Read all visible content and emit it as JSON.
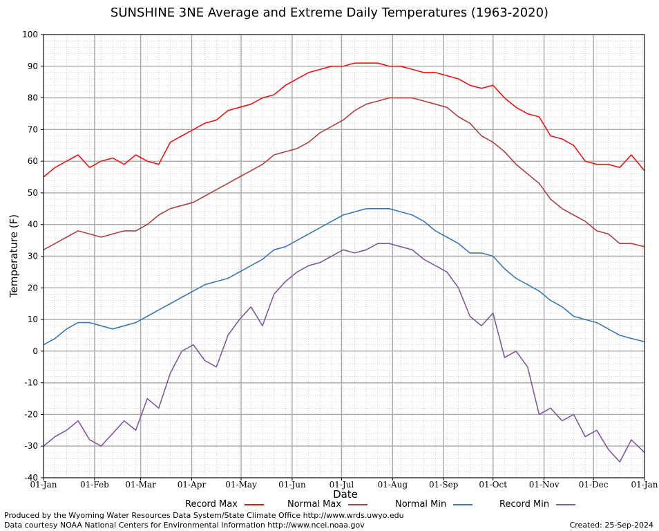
{
  "chart_data": {
    "type": "line",
    "title": "SUNSHINE 3NE Average and Extreme Daily Temperatures (1963-2020)",
    "xlabel": "Date",
    "ylabel": "Temperature (F)",
    "ylim": [
      -40,
      100
    ],
    "yticks": [
      100,
      90,
      80,
      70,
      60,
      50,
      40,
      30,
      20,
      10,
      0,
      -10,
      -20,
      -30,
      -40
    ],
    "x_ticks": [
      {
        "label": "01-Jan",
        "day": 1
      },
      {
        "label": "01-Feb",
        "day": 32
      },
      {
        "label": "01-Mar",
        "day": 60
      },
      {
        "label": "01-Apr",
        "day": 91
      },
      {
        "label": "01-May",
        "day": 121
      },
      {
        "label": "01-Jun",
        "day": 152
      },
      {
        "label": "01-Jul",
        "day": 182
      },
      {
        "label": "01-Aug",
        "day": 213
      },
      {
        "label": "01-Sep",
        "day": 244
      },
      {
        "label": "01-Oct",
        "day": 274
      },
      {
        "label": "01-Nov",
        "day": 305
      },
      {
        "label": "01-Dec",
        "day": 335
      },
      {
        "label": "01-Jan",
        "day": 366
      }
    ],
    "grid": true,
    "legend_position": "bottom",
    "series": [
      {
        "name": "Record Max",
        "color": "#ee1111",
        "x": [
          1,
          8,
          15,
          22,
          29,
          36,
          43,
          50,
          57,
          64,
          71,
          78,
          85,
          92,
          99,
          106,
          113,
          120,
          127,
          134,
          141,
          148,
          155,
          162,
          169,
          176,
          183,
          190,
          197,
          204,
          211,
          218,
          225,
          232,
          239,
          246,
          253,
          260,
          267,
          274,
          281,
          288,
          295,
          302,
          309,
          316,
          323,
          330,
          337,
          344,
          351,
          358,
          366
        ],
        "y": [
          55,
          58,
          60,
          62,
          58,
          60,
          61,
          59,
          62,
          60,
          59,
          66,
          68,
          70,
          72,
          73,
          76,
          77,
          78,
          80,
          81,
          84,
          86,
          88,
          89,
          90,
          90,
          91,
          91,
          91,
          90,
          90,
          89,
          88,
          88,
          87,
          86,
          84,
          83,
          84,
          80,
          77,
          75,
          74,
          68,
          67,
          65,
          60,
          59,
          59,
          58,
          62,
          57
        ]
      },
      {
        "name": "Normal Max",
        "color": "#b04040",
        "x": [
          1,
          8,
          15,
          22,
          29,
          36,
          43,
          50,
          57,
          64,
          71,
          78,
          85,
          92,
          99,
          106,
          113,
          120,
          127,
          134,
          141,
          148,
          155,
          162,
          169,
          176,
          183,
          190,
          197,
          204,
          211,
          218,
          225,
          232,
          239,
          246,
          253,
          260,
          267,
          274,
          281,
          288,
          295,
          302,
          309,
          316,
          323,
          330,
          337,
          344,
          351,
          358,
          366
        ],
        "y": [
          32,
          34,
          36,
          38,
          37,
          36,
          37,
          38,
          38,
          40,
          43,
          45,
          46,
          47,
          49,
          51,
          53,
          55,
          57,
          59,
          62,
          63,
          64,
          66,
          69,
          71,
          73,
          76,
          78,
          79,
          80,
          80,
          80,
          79,
          78,
          77,
          74,
          72,
          68,
          66,
          63,
          59,
          56,
          53,
          48,
          45,
          43,
          41,
          38,
          37,
          34,
          34,
          33
        ]
      },
      {
        "name": "Normal Min",
        "color": "#3a78b4",
        "x": [
          1,
          8,
          15,
          22,
          29,
          36,
          43,
          50,
          57,
          64,
          71,
          78,
          85,
          92,
          99,
          106,
          113,
          120,
          127,
          134,
          141,
          148,
          155,
          162,
          169,
          176,
          183,
          190,
          197,
          204,
          211,
          218,
          225,
          232,
          239,
          246,
          253,
          260,
          267,
          274,
          281,
          288,
          295,
          302,
          309,
          316,
          323,
          330,
          337,
          344,
          351,
          358,
          366
        ],
        "y": [
          2,
          4,
          7,
          9,
          9,
          8,
          7,
          8,
          9,
          11,
          13,
          15,
          17,
          19,
          21,
          22,
          23,
          25,
          27,
          29,
          32,
          33,
          35,
          37,
          39,
          41,
          43,
          44,
          45,
          45,
          45,
          44,
          43,
          41,
          38,
          36,
          34,
          31,
          31,
          30,
          26,
          23,
          21,
          19,
          16,
          14,
          11,
          10,
          9,
          7,
          5,
          4,
          3
        ]
      },
      {
        "name": "Record Min",
        "color": "#7b5a9e",
        "x": [
          1,
          8,
          15,
          22,
          29,
          36,
          43,
          50,
          57,
          64,
          71,
          78,
          85,
          92,
          99,
          106,
          113,
          120,
          127,
          134,
          141,
          148,
          155,
          162,
          169,
          176,
          183,
          190,
          197,
          204,
          211,
          218,
          225,
          232,
          239,
          246,
          253,
          260,
          267,
          274,
          281,
          288,
          295,
          302,
          309,
          316,
          323,
          330,
          337,
          344,
          351,
          358,
          366
        ],
        "y": [
          -30,
          -27,
          -25,
          -22,
          -28,
          -30,
          -26,
          -22,
          -25,
          -15,
          -18,
          -7,
          0,
          2,
          -3,
          -5,
          5,
          10,
          14,
          8,
          18,
          22,
          25,
          27,
          28,
          30,
          32,
          31,
          32,
          34,
          34,
          33,
          32,
          29,
          27,
          25,
          20,
          11,
          8,
          12,
          -2,
          0,
          -5,
          -20,
          -18,
          -22,
          -20,
          -27,
          -25,
          -31,
          -35,
          -28,
          -32
        ]
      }
    ]
  },
  "footer": {
    "credit_line_1": "Produced by the Wyoming Water Resources Data System/State Climate Office http://www.wrds.uwyo.edu",
    "credit_line_2": "Data courtesy NOAA National Centers for Environmental Information http://www.ncei.noaa.gov",
    "created": "Created:  25-Sep-2024"
  }
}
